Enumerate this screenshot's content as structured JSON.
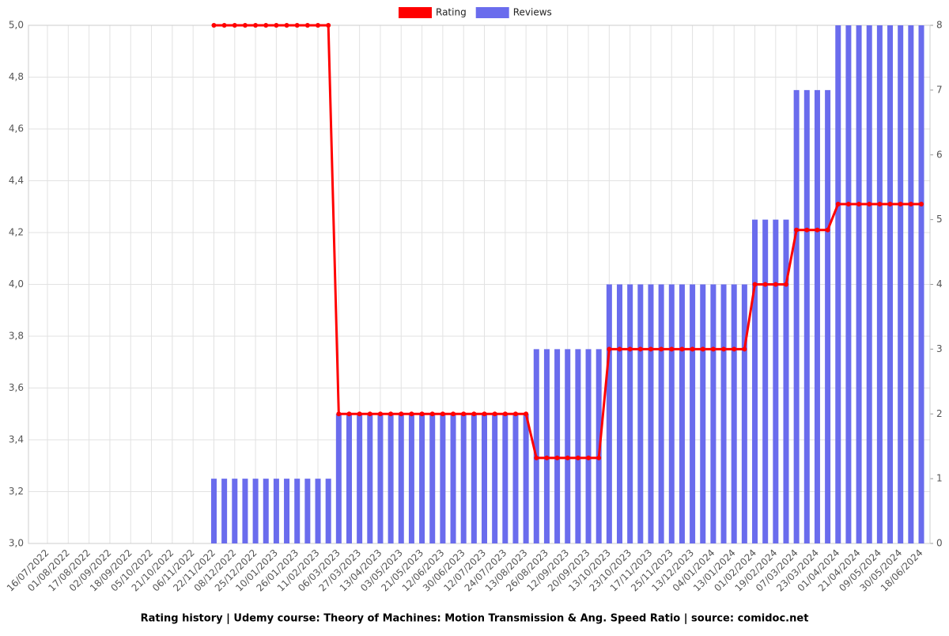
{
  "chart_data": {
    "type": "bar-line",
    "title": "Rating history | Udemy course: Theory of Machines: Motion Transmission & Ang. Speed Ratio | source: comidoc.net",
    "categories": [
      "16/07/2022",
      null,
      "01/08/2022",
      null,
      "17/08/2022",
      null,
      "02/09/2022",
      null,
      "18/09/2022",
      null,
      "05/10/2022",
      null,
      "21/10/2022",
      null,
      "06/11/2022",
      null,
      "22/11/2022",
      null,
      "08/12/2022",
      null,
      "25/12/2022",
      null,
      "10/01/2023",
      null,
      "26/01/2023",
      null,
      "11/02/2023",
      null,
      "06/03/2023",
      null,
      "27/03/2023",
      null,
      "13/04/2023",
      null,
      "03/05/2023",
      null,
      "21/05/2023",
      null,
      "12/06/2023",
      null,
      "30/06/2023",
      null,
      "12/07/2023",
      null,
      "24/07/2023",
      null,
      "13/08/2023",
      null,
      "26/08/2023",
      null,
      "12/09/2023",
      null,
      "20/09/2023",
      null,
      "13/10/2023",
      null,
      "23/10/2023",
      null,
      "17/11/2023",
      null,
      "25/11/2023",
      null,
      "13/12/2023",
      null,
      "04/01/2024",
      null,
      "13/01/2024",
      null,
      "01/02/2024",
      null,
      "19/02/2024",
      null,
      "07/03/2024",
      null,
      "23/03/2024",
      null,
      "01/04/2024",
      null,
      "21/04/2024",
      null,
      "09/05/2024",
      null,
      "30/05/2024",
      null,
      "18/06/2024"
    ],
    "series": [
      {
        "name": "Rating",
        "color": "#ff0000",
        "kind": "line",
        "axis": "y",
        "values": [
          null,
          null,
          null,
          null,
          null,
          null,
          null,
          null,
          null,
          null,
          null,
          null,
          null,
          null,
          null,
          null,
          5,
          5,
          5,
          5,
          5,
          5,
          5,
          5,
          5,
          5,
          5,
          5,
          3.5,
          3.5,
          3.5,
          3.5,
          3.5,
          3.5,
          3.5,
          3.5,
          3.5,
          3.5,
          3.5,
          3.5,
          3.5,
          3.5,
          3.5,
          3.5,
          3.5,
          3.5,
          3.5,
          3.33,
          3.33,
          3.33,
          3.33,
          3.33,
          3.33,
          3.33,
          3.75,
          3.75,
          3.75,
          3.75,
          3.75,
          3.75,
          3.75,
          3.75,
          3.75,
          3.75,
          3.75,
          3.75,
          3.75,
          3.75,
          4,
          4,
          4,
          4,
          4.21,
          4.21,
          4.21,
          4.21,
          4.31,
          4.31,
          4.31,
          4.31,
          4.31,
          4.31,
          4.31,
          4.31,
          4.31
        ]
      },
      {
        "name": "Reviews",
        "color": "#6a6ced",
        "kind": "bar",
        "axis": "y2",
        "values": [
          0,
          0,
          0,
          0,
          0,
          0,
          0,
          0,
          0,
          0,
          0,
          0,
          0,
          0,
          0,
          0,
          1,
          1,
          1,
          1,
          1,
          1,
          1,
          1,
          1,
          1,
          1,
          1,
          2,
          2,
          2,
          2,
          2,
          2,
          2,
          2,
          2,
          2,
          2,
          2,
          2,
          2,
          2,
          2,
          2,
          2,
          2,
          3,
          3,
          3,
          3,
          3,
          3,
          3,
          4,
          4,
          4,
          4,
          4,
          4,
          4,
          4,
          4,
          4,
          4,
          4,
          4,
          4,
          5,
          5,
          5,
          5,
          7,
          7,
          7,
          7,
          8,
          8,
          8,
          8,
          8,
          8,
          8,
          8,
          8
        ]
      }
    ],
    "ylim": [
      3,
      5
    ],
    "yticks": [
      {
        "value": 3,
        "label": "3,0"
      },
      {
        "value": 3.2,
        "label": "3,2"
      },
      {
        "value": 3.4,
        "label": "3,4"
      },
      {
        "value": 3.6,
        "label": "3,6"
      },
      {
        "value": 3.8,
        "label": "3,8"
      },
      {
        "value": 4,
        "label": "4,0"
      },
      {
        "value": 4.2,
        "label": "4,2"
      },
      {
        "value": 4.4,
        "label": "4,4"
      },
      {
        "value": 4.6,
        "label": "4,6"
      },
      {
        "value": 4.8,
        "label": "4,8"
      },
      {
        "value": 5,
        "label": "5,0"
      }
    ],
    "y2lim": [
      0,
      8
    ],
    "y2ticks": [
      0,
      1,
      2,
      3,
      4,
      5,
      6,
      7,
      8
    ],
    "grid": true,
    "legend": "top"
  }
}
